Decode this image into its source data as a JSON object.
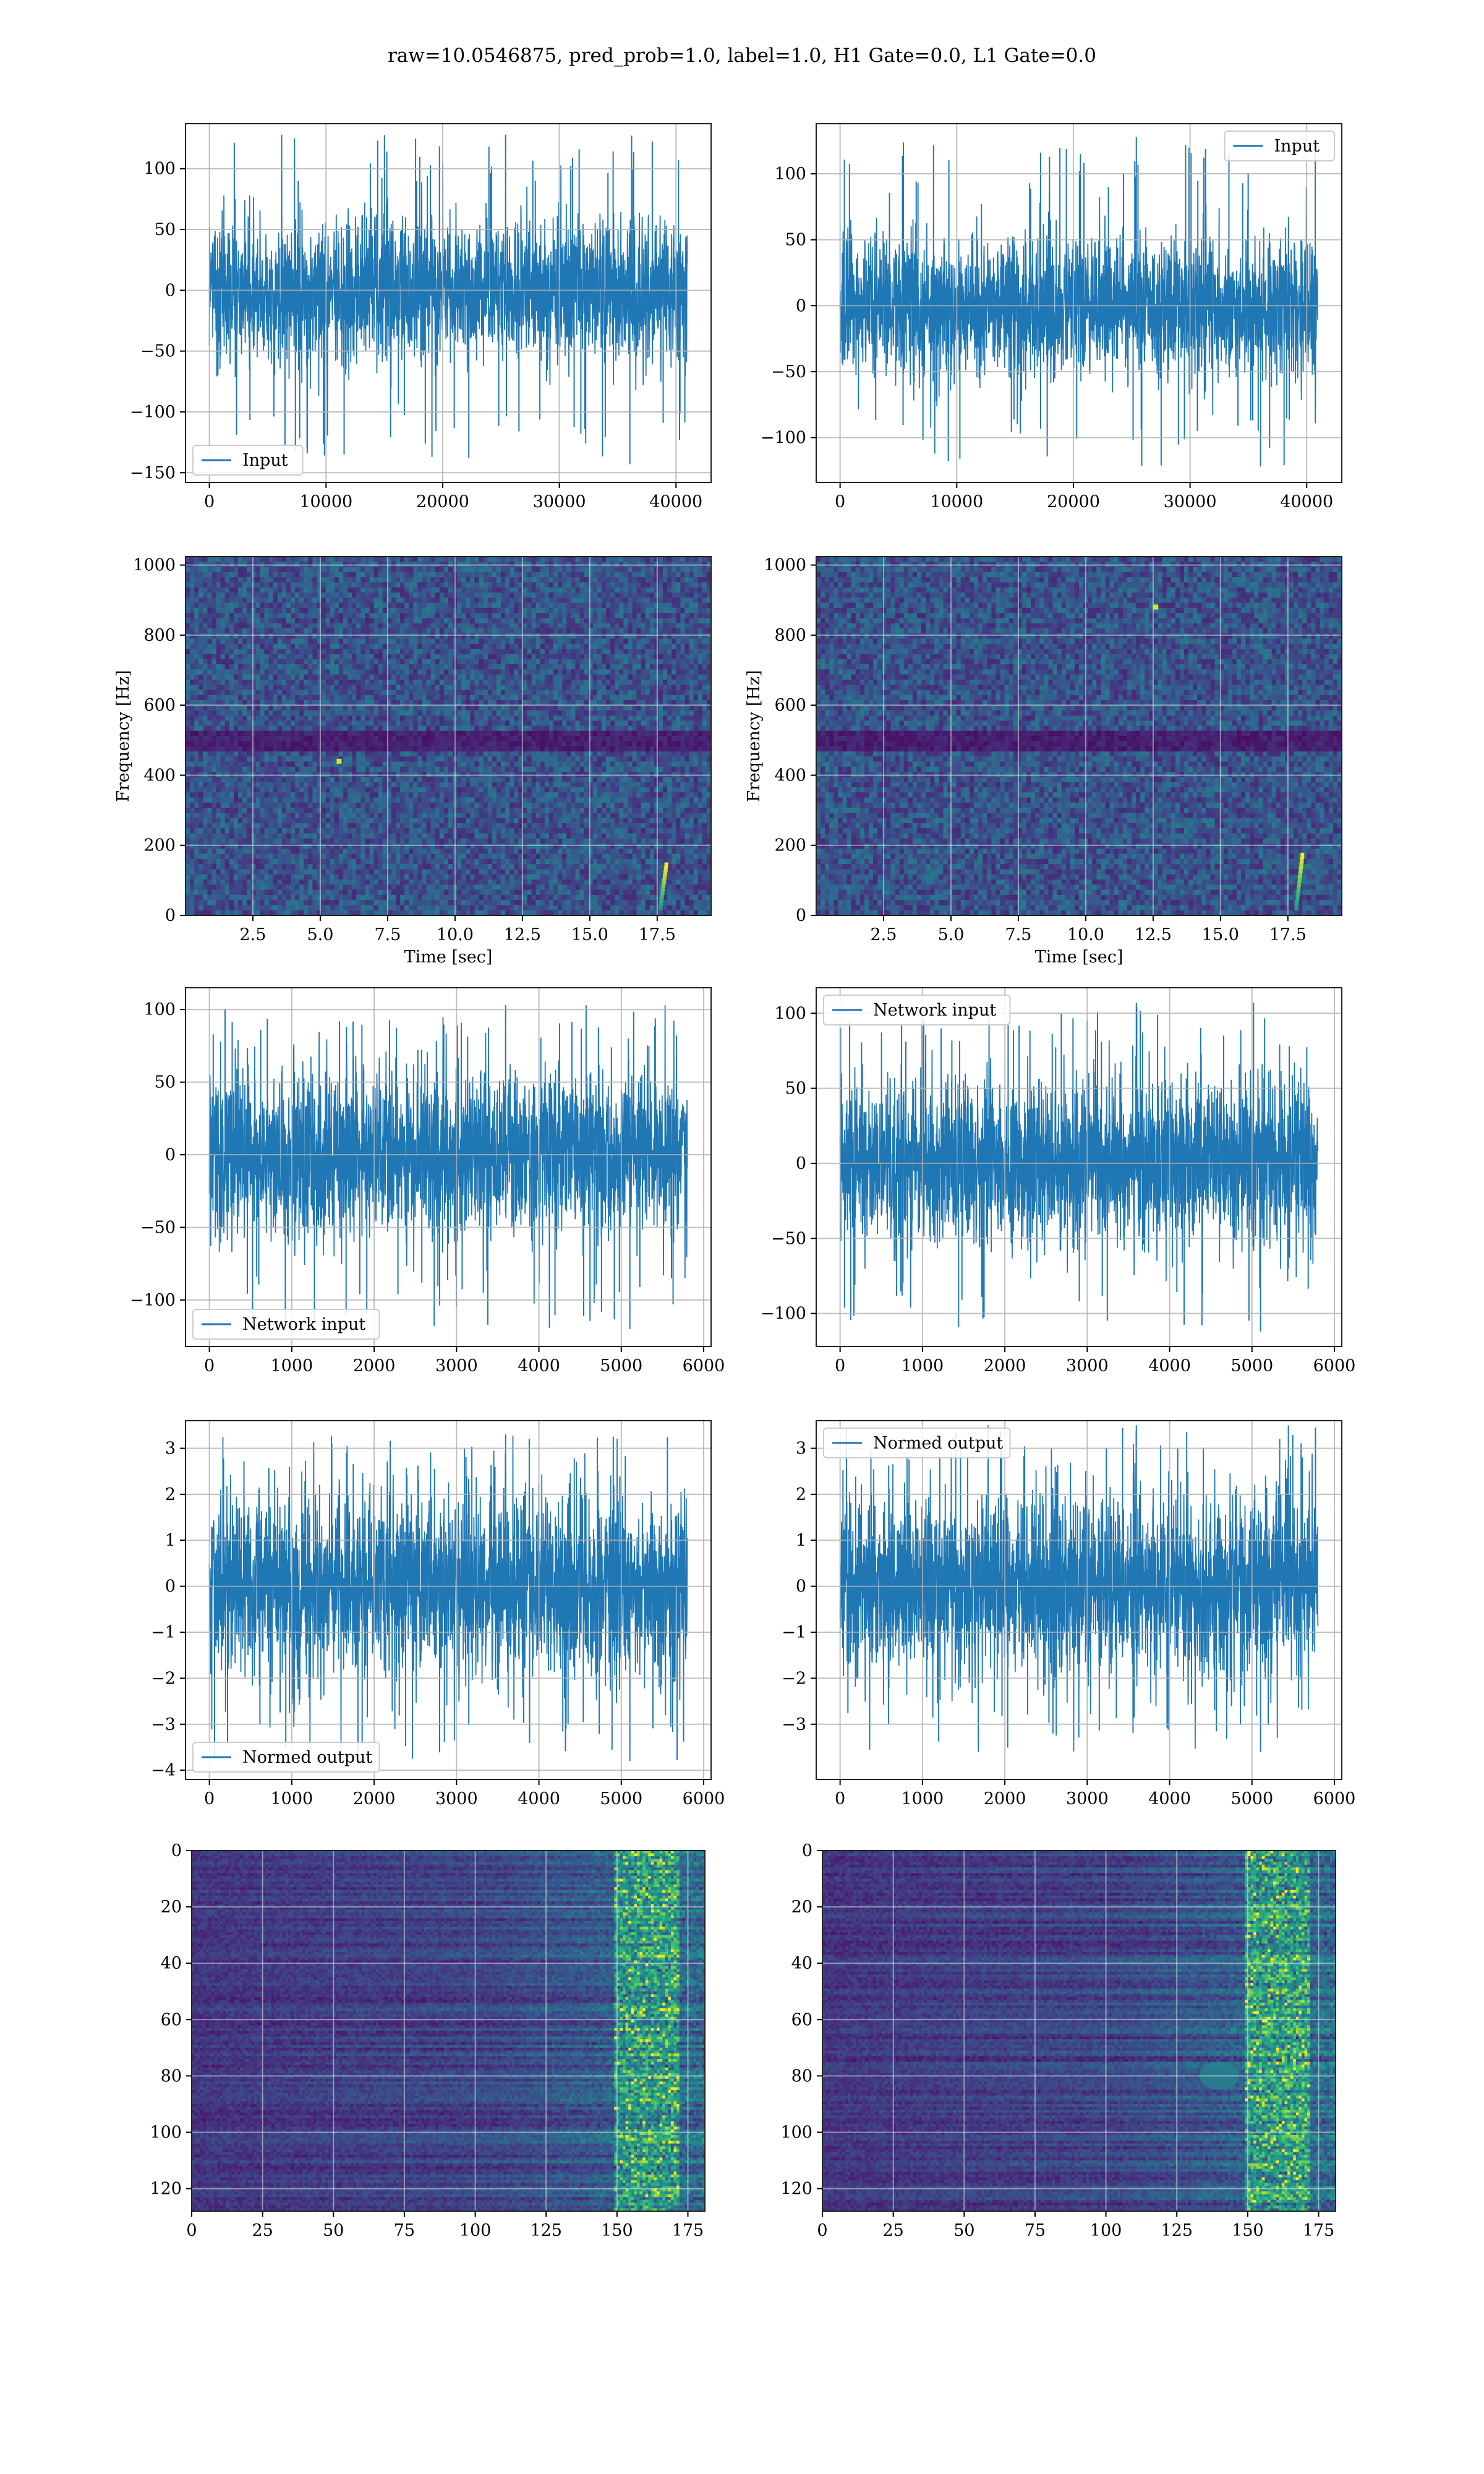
{
  "figure": {
    "suptitle": "raw=10.0546875, pred_prob=1.0, label=1.0, H1 Gate=0.0, L1 Gate=0.0",
    "colors": {
      "line": "#1f77b4",
      "grid": "#b0b0b0",
      "map_low": "#440154",
      "map_mid": "#2a788e",
      "map_high": "#fde725"
    }
  },
  "chart_data": [
    {
      "id": "input-h1",
      "type": "line",
      "title": "",
      "xlabel": "",
      "ylabel": "",
      "series": [
        {
          "name": "Input",
          "n_samples": 40960,
          "mean": 0,
          "std": 28,
          "min": -143,
          "max": 128
        }
      ],
      "xlim": [
        -2048,
        43008
      ],
      "ylim": [
        -158,
        137
      ],
      "xticks": [
        0,
        10000,
        20000,
        30000,
        40000
      ],
      "yticks": [
        -150,
        -100,
        -50,
        0,
        50,
        100
      ],
      "legend": "lower left",
      "grid": true
    },
    {
      "id": "input-l1",
      "type": "line",
      "title": "",
      "xlabel": "",
      "ylabel": "",
      "series": [
        {
          "name": "Input",
          "n_samples": 40960,
          "mean": 0,
          "std": 26,
          "min": -122,
          "max": 128
        }
      ],
      "xlim": [
        -2048,
        43008
      ],
      "ylim": [
        -134,
        138
      ],
      "xticks": [
        0,
        10000,
        20000,
        30000,
        40000
      ],
      "yticks": [
        -100,
        -50,
        0,
        50,
        100
      ],
      "legend": "upper right",
      "grid": true
    },
    {
      "id": "spectrogram-h1",
      "type": "heatmap",
      "title": "",
      "xlabel": "Time [sec]",
      "ylabel": "Frequency [Hz]",
      "xlim": [
        0,
        19.5
      ],
      "ylim": [
        0,
        1024
      ],
      "xticks": [
        2.5,
        5.0,
        7.5,
        10.0,
        12.5,
        15.0,
        17.5
      ],
      "yticks": [
        0,
        200,
        400,
        600,
        800,
        1000
      ],
      "features": [
        {
          "t": 17.8,
          "f_low": 20,
          "f_high": 150,
          "kind": "chirp"
        },
        {
          "t": 5.7,
          "f": 440,
          "kind": "blip"
        },
        {
          "band_hz": [
            470,
            520
          ],
          "kind": "dark band"
        }
      ],
      "grid": true
    },
    {
      "id": "spectrogram-l1",
      "type": "heatmap",
      "title": "",
      "xlabel": "Time [sec]",
      "ylabel": "Frequency [Hz]",
      "xlim": [
        0,
        19.5
      ],
      "ylim": [
        0,
        1024
      ],
      "xticks": [
        2.5,
        5.0,
        7.5,
        10.0,
        12.5,
        15.0,
        17.5
      ],
      "yticks": [
        0,
        200,
        400,
        600,
        800,
        1000
      ],
      "features": [
        {
          "t": 18.0,
          "f_low": 20,
          "f_high": 180,
          "kind": "chirp"
        },
        {
          "t": 12.6,
          "f": 880,
          "kind": "blip"
        },
        {
          "band_hz": [
            470,
            520
          ],
          "kind": "dark band"
        }
      ],
      "grid": true
    },
    {
      "id": "network-input-h1",
      "type": "line",
      "title": "",
      "xlabel": "",
      "ylabel": "",
      "series": [
        {
          "name": "Network input",
          "n_samples": 5800,
          "mean": 0,
          "std": 28,
          "min": -120,
          "max": 103
        }
      ],
      "xlim": [
        -290,
        6090
      ],
      "ylim": [
        -132,
        115
      ],
      "xticks": [
        0,
        1000,
        2000,
        3000,
        4000,
        5000,
        6000
      ],
      "yticks": [
        -100,
        -50,
        0,
        50,
        100
      ],
      "legend": "lower left",
      "grid": true
    },
    {
      "id": "network-input-l1",
      "type": "line",
      "title": "",
      "xlabel": "",
      "ylabel": "",
      "series": [
        {
          "name": "Network input",
          "n_samples": 5800,
          "mean": 0,
          "std": 26,
          "min": -112,
          "max": 107
        }
      ],
      "xlim": [
        -290,
        6090
      ],
      "ylim": [
        -122,
        117
      ],
      "xticks": [
        0,
        1000,
        2000,
        3000,
        4000,
        5000,
        6000
      ],
      "yticks": [
        -100,
        -50,
        0,
        50,
        100
      ],
      "legend": "upper left",
      "grid": true
    },
    {
      "id": "normed-output-h1",
      "type": "line",
      "title": "",
      "xlabel": "",
      "ylabel": "",
      "series": [
        {
          "name": "Normed output",
          "n_samples": 5800,
          "mean": 0,
          "std": 0.95,
          "min": -3.8,
          "max": 3.3
        }
      ],
      "xlim": [
        -290,
        6090
      ],
      "ylim": [
        -4.2,
        3.6
      ],
      "xticks": [
        0,
        1000,
        2000,
        3000,
        4000,
        5000,
        6000
      ],
      "yticks": [
        -4,
        -3,
        -2,
        -1,
        0,
        1,
        2,
        3
      ],
      "legend": "lower left",
      "grid": true
    },
    {
      "id": "normed-output-l1",
      "type": "line",
      "title": "",
      "xlabel": "",
      "ylabel": "",
      "series": [
        {
          "name": "Normed output",
          "n_samples": 5800,
          "mean": 0,
          "std": 0.95,
          "min": -3.6,
          "max": 3.5
        }
      ],
      "xlim": [
        -290,
        6090
      ],
      "ylim": [
        -4.2,
        3.6
      ],
      "xticks": [
        0,
        1000,
        2000,
        3000,
        4000,
        5000,
        6000
      ],
      "yticks": [
        -3,
        -2,
        -1,
        0,
        1,
        2,
        3
      ],
      "legend": "upper left",
      "grid": true
    },
    {
      "id": "feature-map-h1",
      "type": "heatmap",
      "title": "",
      "xlabel": "",
      "ylabel": "",
      "rows": 128,
      "cols": 181,
      "xlim": [
        0,
        181
      ],
      "ylim": [
        128,
        0
      ],
      "xticks": [
        0,
        25,
        50,
        75,
        100,
        125,
        150,
        175
      ],
      "yticks": [
        0,
        20,
        40,
        60,
        80,
        100,
        120
      ],
      "features": [
        {
          "col_range": [
            150,
            170
          ],
          "kind": "bright columns"
        }
      ],
      "grid": true
    },
    {
      "id": "feature-map-l1",
      "type": "heatmap",
      "title": "",
      "xlabel": "",
      "ylabel": "",
      "rows": 128,
      "cols": 181,
      "xlim": [
        0,
        181
      ],
      "ylim": [
        128,
        0
      ],
      "xticks": [
        0,
        25,
        50,
        75,
        100,
        125,
        150,
        175
      ],
      "yticks": [
        0,
        20,
        40,
        60,
        80,
        100,
        120
      ],
      "features": [
        {
          "col_range": [
            150,
            170
          ],
          "kind": "bright columns"
        },
        {
          "row": 80,
          "col": 140,
          "kind": "blob"
        }
      ],
      "grid": true
    }
  ]
}
